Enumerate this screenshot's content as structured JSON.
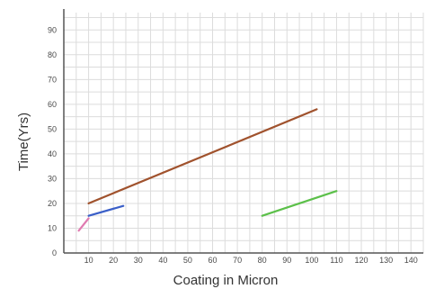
{
  "chart_data": {
    "type": "line",
    "title": "",
    "xlabel": "Coating in Micron",
    "ylabel": "Time(Yrs)",
    "xlim": [
      0,
      145
    ],
    "ylim": [
      0,
      97
    ],
    "x_ticks": [
      10,
      20,
      30,
      40,
      50,
      60,
      70,
      80,
      90,
      100,
      110,
      120,
      130,
      140
    ],
    "y_ticks": [
      0,
      10,
      20,
      30,
      40,
      50,
      60,
      70,
      80,
      90
    ],
    "grid": true,
    "legend": "none",
    "series": [
      {
        "color": "#e07ab0",
        "x": [
          6,
          10
        ],
        "y": [
          9,
          14
        ]
      },
      {
        "color": "#3a5fc8",
        "x": [
          10,
          24
        ],
        "y": [
          15,
          19
        ]
      },
      {
        "color": "#a0522d",
        "x": [
          10,
          102
        ],
        "y": [
          20,
          58
        ]
      },
      {
        "color": "#5cc04a",
        "x": [
          80,
          110
        ],
        "y": [
          15,
          25
        ]
      }
    ]
  }
}
